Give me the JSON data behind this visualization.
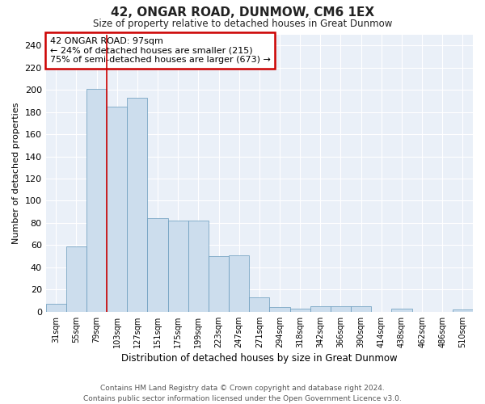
{
  "title": "42, ONGAR ROAD, DUNMOW, CM6 1EX",
  "subtitle": "Size of property relative to detached houses in Great Dunmow",
  "xlabel": "Distribution of detached houses by size in Great Dunmow",
  "ylabel": "Number of detached properties",
  "bar_color": "#ccdded",
  "bar_edge_color": "#6699bb",
  "background_color": "#eaf0f8",
  "grid_color": "#ffffff",
  "categories": [
    "31sqm",
    "55sqm",
    "79sqm",
    "103sqm",
    "127sqm",
    "151sqm",
    "175sqm",
    "199sqm",
    "223sqm",
    "247sqm",
    "271sqm",
    "294sqm",
    "318sqm",
    "342sqm",
    "366sqm",
    "390sqm",
    "414sqm",
    "438sqm",
    "462sqm",
    "486sqm",
    "510sqm"
  ],
  "values": [
    7,
    59,
    201,
    185,
    193,
    84,
    82,
    82,
    50,
    51,
    13,
    4,
    3,
    5,
    5,
    5,
    0,
    3,
    0,
    0,
    2
  ],
  "ylim": [
    0,
    250
  ],
  "yticks": [
    0,
    20,
    40,
    60,
    80,
    100,
    120,
    140,
    160,
    180,
    200,
    220,
    240
  ],
  "vline_pos": 2.5,
  "vline_color": "#cc0000",
  "annotation_text": "42 ONGAR ROAD: 97sqm\n← 24% of detached houses are smaller (215)\n75% of semi-detached houses are larger (673) →",
  "annotation_box_color": "#cc0000",
  "footer_line1": "Contains HM Land Registry data © Crown copyright and database right 2024.",
  "footer_line2": "Contains public sector information licensed under the Open Government Licence v3.0."
}
